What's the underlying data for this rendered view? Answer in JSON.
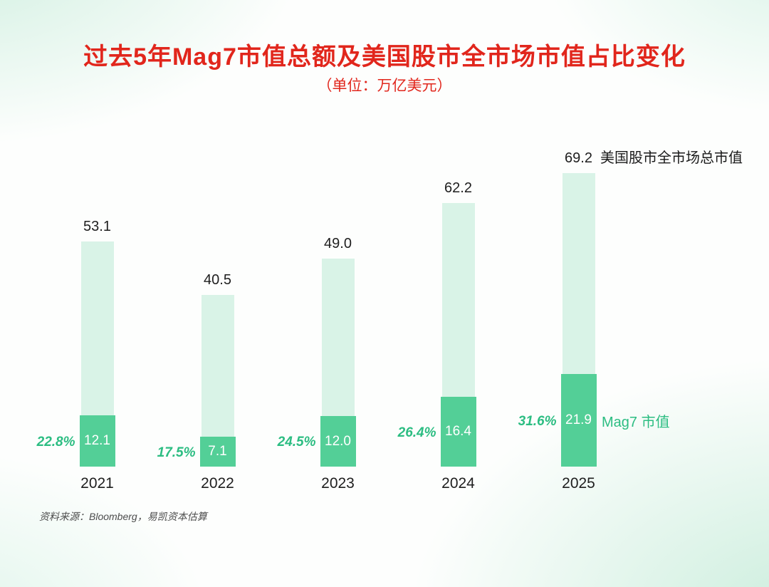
{
  "title": "过去5年Mag7市值总额及美国股市全市场市值占比变化",
  "subtitle": "（单位：万亿美元）",
  "source": "资料来源：Bloomberg，易凯资本估算",
  "annotations": {
    "total_label": "美国股市全市场总市值",
    "mag7_label": "Mag7 市值"
  },
  "colors": {
    "title_red": "#e1261c",
    "light_bar": "#d9f3e7",
    "dark_bar": "#53cf97",
    "percent_green": "#2cbd82",
    "text_dark": "#1e1e1e",
    "source_gray": "#4d4d4d"
  },
  "chart_data": {
    "type": "bar",
    "title": "过去5年Mag7市值总额及美国股市全市场市值占比变化",
    "subtitle_unit": "（单位：万亿美元）",
    "categories": [
      "2021",
      "2022",
      "2023",
      "2024",
      "2025"
    ],
    "series": [
      {
        "name": "美国股市全市场总市值",
        "values": [
          53.1,
          40.5,
          49.0,
          62.2,
          69.2
        ],
        "labels": [
          "53.1",
          "40.5",
          "49.0",
          "62.2",
          "69.2"
        ],
        "color": "#d9f3e7"
      },
      {
        "name": "Mag7 市值",
        "values": [
          12.1,
          7.1,
          12.0,
          16.4,
          21.9
        ],
        "labels": [
          "12.1",
          "7.1",
          "12.0",
          "16.4",
          "21.9"
        ],
        "color": "#53cf97"
      }
    ],
    "percent_labels": [
      "22.8%",
      "17.5%",
      "24.5%",
      "26.4%",
      "31.6%"
    ],
    "xlabel": "",
    "ylabel": "",
    "ylim": [
      0,
      70
    ],
    "grid": false,
    "legend_position": "inline-right"
  }
}
